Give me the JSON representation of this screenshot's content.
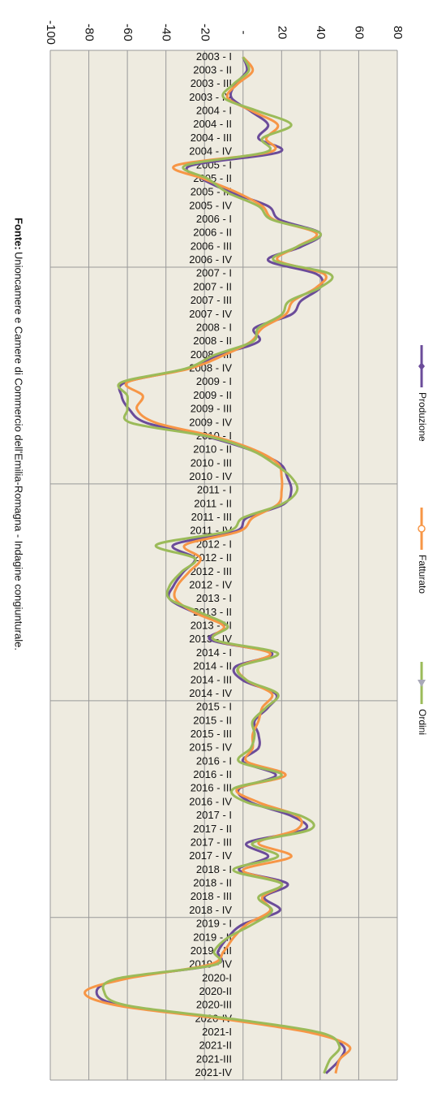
{
  "chart_data": {
    "type": "line",
    "categories": [
      "2003 - I",
      "2003 - II",
      "2003 - III",
      "2003 - IV",
      "2004 - I",
      "2004 - II",
      "2004 - III",
      "2004 - IV",
      "2005 - I",
      "2005 - II",
      "2005 - III",
      "2005 - IV",
      "2006 - I",
      "2006 - II",
      "2006 - III",
      "2006 - IV",
      "2007 - I",
      "2007 - II",
      "2007 - III",
      "2007 - IV",
      "2008 - I",
      "2008 - II",
      "2008 - III",
      "2008 - IV",
      "2009 - I",
      "2009 - II",
      "2009 - III",
      "2009 - IV",
      "2010 - I",
      "2010 - II",
      "2010 - III",
      "2010 - IV",
      "2011 - I",
      "2011 - II",
      "2011 - III",
      "2011 - IV",
      "2012 - I",
      "2012 - II",
      "2012 - III",
      "2012 - IV",
      "2013 - I",
      "2013 - II",
      "2013 - III",
      "2013 - IV",
      "2014 - I",
      "2014 - II",
      "2014 - III",
      "2014 - IV",
      "2015 - I",
      "2015 - II",
      "2015 - III",
      "2015 - IV",
      "2016 - I",
      "2016 - II",
      "2016 - III",
      "2016 - IV",
      "2017 - I",
      "2017 - II",
      "2017 - III",
      "2017 - IV",
      "2018 - I",
      "2018 - II",
      "2018 - III",
      "2018 - IV",
      "2019 - I",
      "2019 - II",
      "2019 - III",
      "2019 - IV",
      "2020-I",
      "2020-II",
      "2020-III",
      "2020-IV",
      "2021-I",
      "2021-II",
      "2021-III",
      "2021-IV"
    ],
    "series": [
      {
        "name": "Produzione",
        "color": "#6b4c9a",
        "marker": "diamond",
        "values": [
          0,
          2,
          -4,
          -6,
          4,
          13,
          8,
          19,
          -27,
          -21,
          -6,
          13,
          19,
          40,
          30,
          13,
          38,
          40,
          30,
          25,
          6,
          8,
          -13,
          -29,
          -61,
          -63,
          -59,
          -50,
          -19,
          4,
          19,
          23,
          25,
          21,
          2,
          -4,
          -36,
          -25,
          -31,
          -36,
          -38,
          -25,
          -8,
          -17,
          15,
          -4,
          0,
          17,
          13,
          6,
          8,
          8,
          0,
          17,
          -2,
          4,
          25,
          32,
          2,
          13,
          -2,
          23,
          11,
          19,
          0,
          -8,
          -13,
          -15,
          -63,
          -76,
          -63,
          -8,
          38,
          52,
          50,
          43
        ]
      },
      {
        "name": "Fatturato",
        "color": "#f79646",
        "marker": "circle",
        "values": [
          0,
          5,
          -3,
          -8,
          5,
          18,
          12,
          14,
          -35,
          -20,
          -3,
          10,
          16,
          38,
          28,
          18,
          42,
          38,
          26,
          22,
          10,
          4,
          -10,
          -28,
          -60,
          -52,
          -55,
          -45,
          -15,
          6,
          18,
          20,
          20,
          18,
          5,
          -2,
          -30,
          -22,
          -28,
          -34,
          -35,
          -25,
          -10,
          -15,
          14,
          -2,
          2,
          15,
          10,
          8,
          5,
          5,
          2,
          22,
          -3,
          8,
          28,
          28,
          8,
          25,
          0,
          20,
          10,
          14,
          2,
          -5,
          -10,
          -18,
          -60,
          -82,
          -65,
          -10,
          35,
          55,
          50,
          48
        ]
      },
      {
        "name": "Ordini",
        "color": "#9bbb59",
        "marker": "triangle",
        "values": [
          0,
          3,
          -5,
          -10,
          8,
          25,
          10,
          12,
          -30,
          -18,
          -8,
          8,
          15,
          40,
          28,
          16,
          45,
          40,
          24,
          20,
          8,
          5,
          -15,
          -30,
          -63,
          -60,
          -60,
          -58,
          -18,
          4,
          16,
          25,
          28,
          20,
          0,
          -8,
          -45,
          -25,
          -32,
          -38,
          -38,
          -22,
          -8,
          -15,
          18,
          -2,
          2,
          18,
          12,
          5,
          6,
          4,
          -2,
          20,
          -5,
          2,
          30,
          35,
          5,
          18,
          -5,
          20,
          8,
          15,
          5,
          -8,
          -15,
          -15,
          -65,
          -72,
          -60,
          -5,
          40,
          50,
          45,
          42
        ]
      }
    ],
    "ylim": [
      -100,
      80
    ],
    "yticks": [
      -100,
      -80,
      -60,
      -40,
      -20,
      {
        "value": 0,
        "label": "-"
      },
      20,
      40,
      60,
      80
    ],
    "grid": true,
    "source_label": "Fonte:",
    "source_text": "Unioncamere e Camere di Commercio dell'Emilia-Romagna - Indagine congiunturale."
  }
}
